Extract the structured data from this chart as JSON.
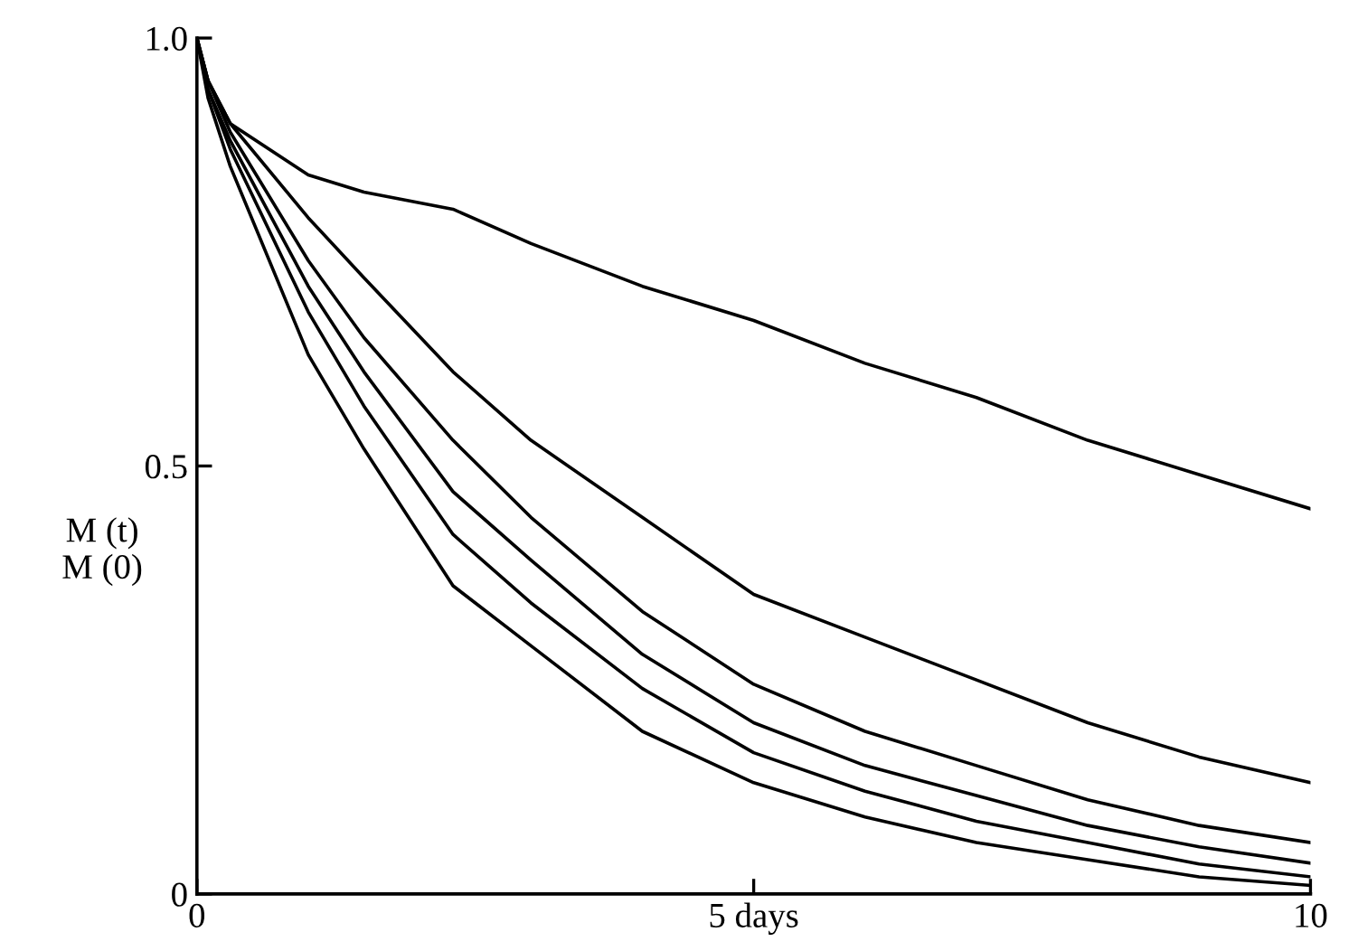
{
  "chart_data": {
    "type": "line",
    "ylabel": "M (t)\nM (0)",
    "x": [
      0,
      0.1,
      0.3,
      1,
      1.5,
      2.3,
      3,
      4,
      5,
      6,
      7,
      8,
      9,
      10
    ],
    "series": [
      {
        "color": "#000000",
        "values": [
          1.0,
          0.95,
          0.9,
          0.84,
          0.82,
          0.8,
          0.76,
          0.71,
          0.67,
          0.62,
          0.58,
          0.53,
          0.49,
          0.45
        ]
      },
      {
        "color": "#000000",
        "values": [
          1.0,
          0.95,
          0.9,
          0.79,
          0.72,
          0.61,
          0.53,
          0.44,
          0.35,
          0.3,
          0.25,
          0.2,
          0.16,
          0.13
        ]
      },
      {
        "color": "#000000",
        "values": [
          1.0,
          0.95,
          0.89,
          0.74,
          0.65,
          0.53,
          0.44,
          0.33,
          0.245,
          0.19,
          0.15,
          0.11,
          0.08,
          0.06
        ]
      },
      {
        "color": "#000000",
        "values": [
          1.0,
          0.94,
          0.88,
          0.71,
          0.61,
          0.47,
          0.39,
          0.28,
          0.2,
          0.15,
          0.115,
          0.08,
          0.055,
          0.036
        ]
      },
      {
        "color": "#000000",
        "values": [
          1.0,
          0.94,
          0.87,
          0.68,
          0.57,
          0.42,
          0.34,
          0.24,
          0.165,
          0.12,
          0.085,
          0.06,
          0.035,
          0.02
        ]
      },
      {
        "color": "#000000",
        "values": [
          1.0,
          0.93,
          0.85,
          0.63,
          0.52,
          0.36,
          0.29,
          0.19,
          0.13,
          0.09,
          0.06,
          0.04,
          0.02,
          0.01
        ]
      }
    ],
    "xlim": [
      0,
      10
    ],
    "ylim": [
      0,
      1.0
    ],
    "xticks": [
      0,
      {
        "value": 5,
        "label": "5 days"
      },
      10
    ],
    "yticks": [
      0,
      {
        "value": 0.5,
        "label": "0.5"
      },
      {
        "value": 1.0,
        "label": "1.0"
      }
    ],
    "grid": false,
    "marker": "none",
    "line_style": "solid"
  }
}
